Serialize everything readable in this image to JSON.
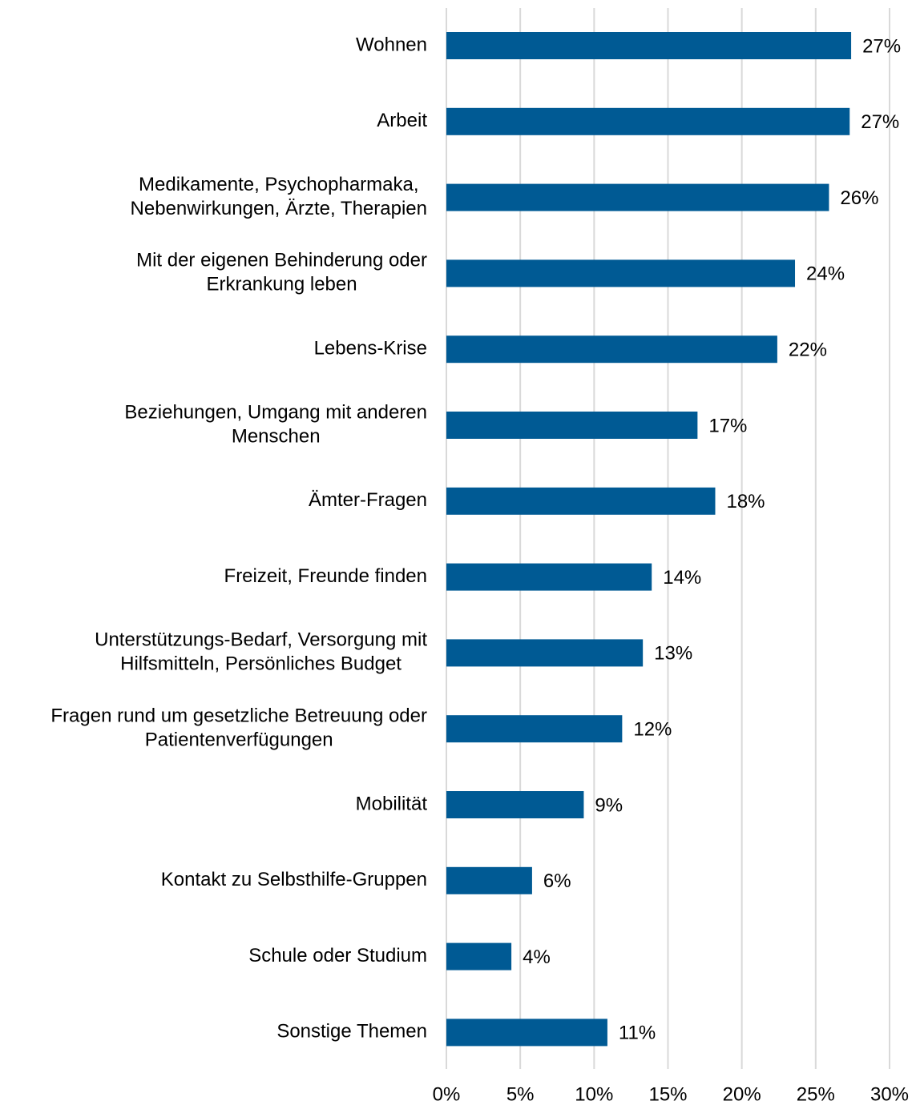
{
  "chart_data": {
    "type": "bar",
    "orientation": "horizontal",
    "color": "#005a94",
    "categories": [
      [
        "Wohnen"
      ],
      [
        "Arbeit"
      ],
      [
        "Medikamente, Psychopharmaka,",
        "Nebenwirkungen, Ärzte, Therapien"
      ],
      [
        "Mit der eigenen Behinderung oder",
        "Erkrankung leben"
      ],
      [
        "Lebens-Krise"
      ],
      [
        "Beziehungen, Umgang mit anderen",
        "Menschen"
      ],
      [
        "Ämter-Fragen"
      ],
      [
        "Freizeit, Freunde finden"
      ],
      [
        "Unterstützungs-Bedarf, Versorgung mit",
        "Hilfsmitteln, Persönliches Budget"
      ],
      [
        "Fragen rund um gesetzliche Betreuung oder",
        "Patientenverfügungen"
      ],
      [
        "Mobilität"
      ],
      [
        "Kontakt zu Selbsthilfe-Gruppen"
      ],
      [
        "Schule oder Studium"
      ],
      [
        "Sonstige Themen"
      ]
    ],
    "values": [
      27.4,
      27.3,
      25.9,
      23.6,
      22.4,
      17.0,
      18.2,
      13.9,
      13.3,
      11.9,
      9.3,
      5.8,
      4.4,
      10.9
    ],
    "value_labels": [
      "27%",
      "27%",
      "26%",
      "24%",
      "22%",
      "17%",
      "18%",
      "14%",
      "13%",
      "12%",
      "9%",
      "6%",
      "4%",
      "11%"
    ],
    "xlim": [
      0,
      30
    ],
    "xticks": [
      {
        "value": 0,
        "label": "0%"
      },
      {
        "value": 5,
        "label": "5%"
      },
      {
        "value": 10,
        "label": "10%"
      },
      {
        "value": 15,
        "label": "15%"
      },
      {
        "value": 20,
        "label": "20%"
      },
      {
        "value": 25,
        "label": "25%"
      },
      {
        "value": 30,
        "label": "30%"
      }
    ],
    "grid": true
  }
}
